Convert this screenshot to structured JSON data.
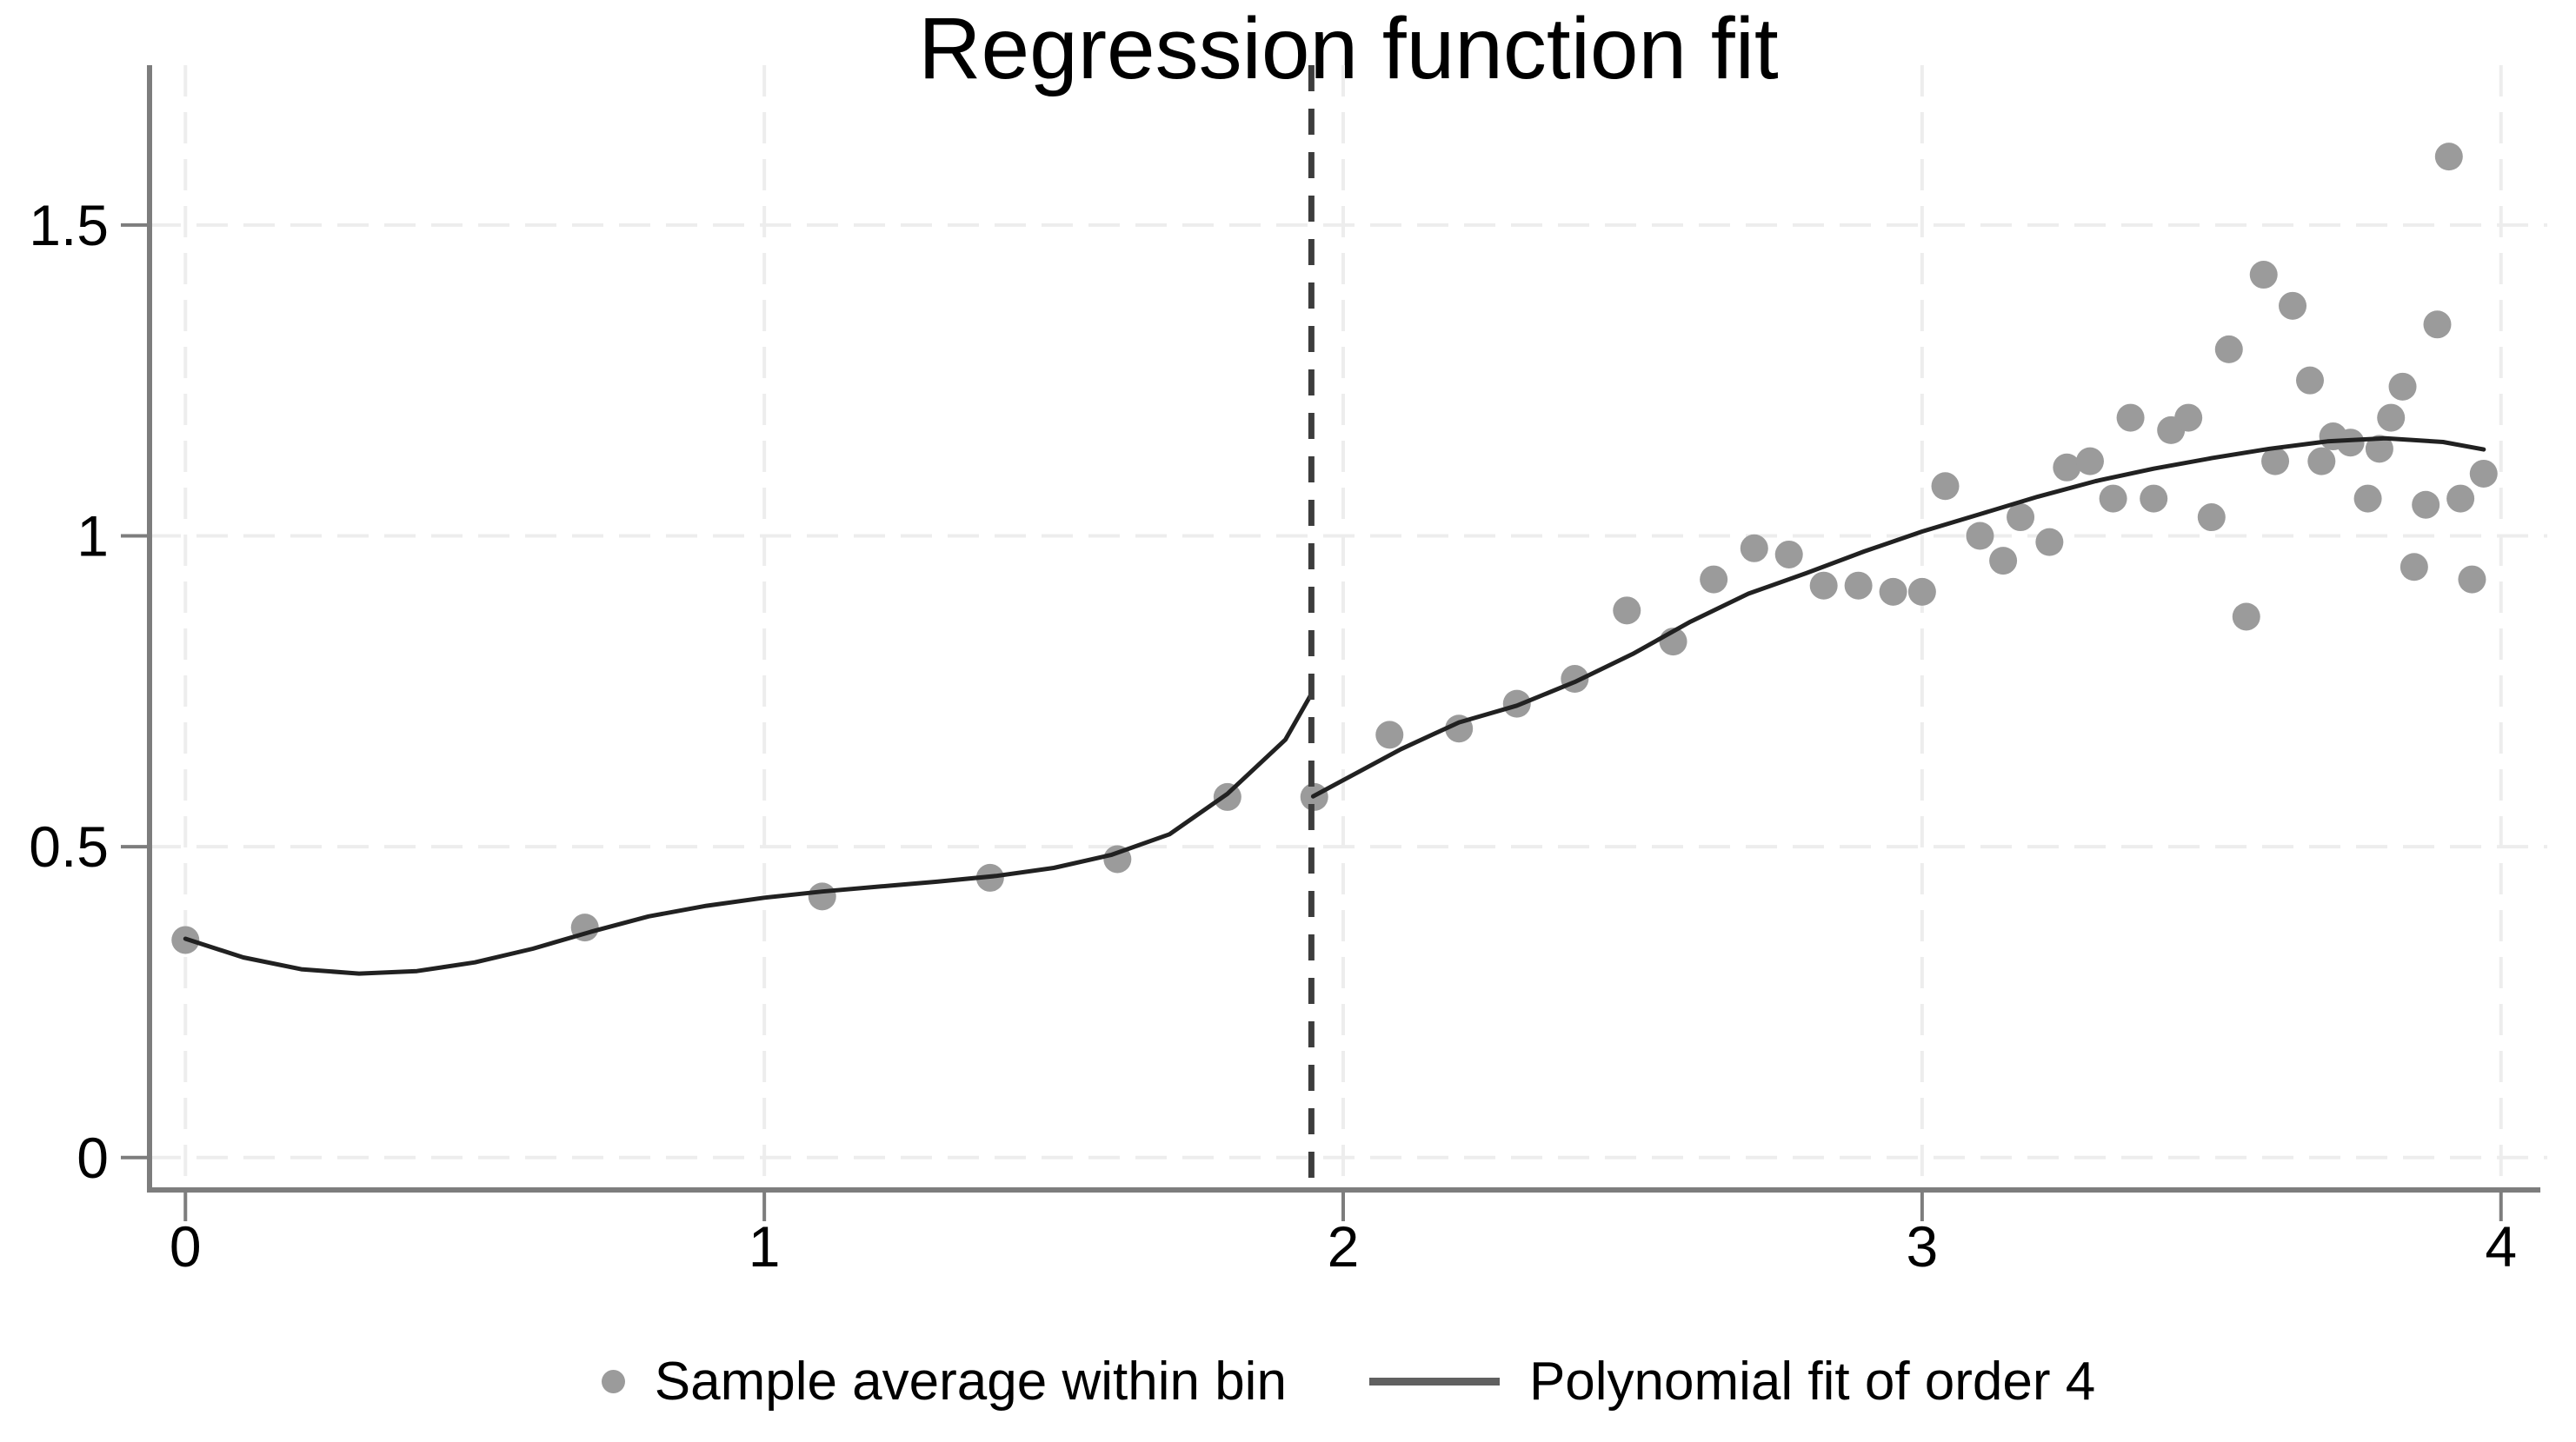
{
  "title": "Regression function fit",
  "legend": {
    "items": [
      {
        "label": "Sample average within bin",
        "marker": "dot-icon"
      },
      {
        "label": "Polynomial fit of order 4",
        "marker": "line-icon"
      }
    ],
    "position": "bottom center"
  },
  "style": {
    "background": "#ffffff",
    "dot_color": "#9b9b9b",
    "fit_line_color": "#212121",
    "legend_line_color": "#606060",
    "cutoff_color": "#3d3d3d",
    "axis_color": "#7d7d7d",
    "gridline_color": "#ededed",
    "text_color": "#000000"
  },
  "chart_data": {
    "type": "scatter",
    "title": "Regression function fit",
    "xlabel": "",
    "ylabel": "",
    "grid": "dashed light-gray gridlines at every x and y tick",
    "legend_position": "bottom center",
    "x_axis": {
      "ticks": [
        0,
        1,
        2,
        3,
        4
      ],
      "tick_labels": [
        "0",
        "1",
        "2",
        "3",
        "4"
      ],
      "range": [
        -0.062,
        4.08
      ]
    },
    "y_axis": {
      "ticks": [
        0,
        0.5,
        1,
        1.5
      ],
      "tick_labels": [
        "0",
        "0.5",
        "1",
        "1.5"
      ],
      "range": [
        -0.052,
        1.757
      ]
    },
    "cutoff_line": {
      "x": 1.945,
      "style": "dashed-vertical"
    },
    "series": [
      {
        "name": "Sample average within bin",
        "type": "scatter",
        "points": [
          [
            0.0,
            0.35
          ],
          [
            0.69,
            0.37
          ],
          [
            1.1,
            0.42
          ],
          [
            1.39,
            0.45
          ],
          [
            1.61,
            0.48
          ],
          [
            1.8,
            0.58
          ],
          [
            1.95,
            0.58
          ],
          [
            2.08,
            0.68
          ],
          [
            2.2,
            0.69
          ],
          [
            2.3,
            0.73
          ],
          [
            2.4,
            0.77
          ],
          [
            2.49,
            0.88
          ],
          [
            2.57,
            0.83
          ],
          [
            2.64,
            0.93
          ],
          [
            2.71,
            0.98
          ],
          [
            2.77,
            0.97
          ],
          [
            2.83,
            0.92
          ],
          [
            2.89,
            0.92
          ],
          [
            2.95,
            0.91
          ],
          [
            3.0,
            0.91
          ],
          [
            3.04,
            1.08
          ],
          [
            3.1,
            1.0
          ],
          [
            3.14,
            0.96
          ],
          [
            3.17,
            1.03
          ],
          [
            3.22,
            0.99
          ],
          [
            3.25,
            1.11
          ],
          [
            3.29,
            1.12
          ],
          [
            3.33,
            1.06
          ],
          [
            3.36,
            1.19
          ],
          [
            3.4,
            1.06
          ],
          [
            3.43,
            1.17
          ],
          [
            3.46,
            1.19
          ],
          [
            3.5,
            1.03
          ],
          [
            3.53,
            1.3
          ],
          [
            3.56,
            0.87
          ],
          [
            3.59,
            1.42
          ],
          [
            3.61,
            1.12
          ],
          [
            3.64,
            1.37
          ],
          [
            3.67,
            1.25
          ],
          [
            3.69,
            1.12
          ],
          [
            3.71,
            1.16
          ],
          [
            3.74,
            1.15
          ],
          [
            3.77,
            1.06
          ],
          [
            3.79,
            1.14
          ],
          [
            3.81,
            1.19
          ],
          [
            3.83,
            1.24
          ],
          [
            3.85,
            0.95
          ],
          [
            3.87,
            1.05
          ],
          [
            3.89,
            1.34
          ],
          [
            3.91,
            1.61
          ],
          [
            3.93,
            1.06
          ],
          [
            3.95,
            0.93
          ],
          [
            3.97,
            1.1
          ]
        ]
      },
      {
        "name": "Polynomial fit of order 4",
        "type": "line",
        "segments": [
          [
            [
              0.0,
              0.352
            ],
            [
              0.1,
              0.322
            ],
            [
              0.2,
              0.303
            ],
            [
              0.3,
              0.296
            ],
            [
              0.4,
              0.3
            ],
            [
              0.5,
              0.314
            ],
            [
              0.6,
              0.336
            ],
            [
              0.7,
              0.363
            ],
            [
              0.8,
              0.388
            ],
            [
              0.9,
              0.405
            ],
            [
              1.0,
              0.418
            ],
            [
              1.1,
              0.428
            ],
            [
              1.2,
              0.436
            ],
            [
              1.3,
              0.444
            ],
            [
              1.4,
              0.453
            ],
            [
              1.5,
              0.466
            ],
            [
              1.6,
              0.487
            ],
            [
              1.7,
              0.52
            ],
            [
              1.8,
              0.585
            ],
            [
              1.9,
              0.672
            ],
            [
              1.944,
              0.744
            ]
          ],
          [
            [
              1.948,
              0.581
            ],
            [
              2.0,
              0.607
            ],
            [
              2.1,
              0.657
            ],
            [
              2.2,
              0.7
            ],
            [
              2.3,
              0.727
            ],
            [
              2.4,
              0.765
            ],
            [
              2.5,
              0.81
            ],
            [
              2.6,
              0.862
            ],
            [
              2.7,
              0.907
            ],
            [
              2.8,
              0.94
            ],
            [
              2.9,
              0.975
            ],
            [
              3.0,
              1.007
            ],
            [
              3.1,
              1.035
            ],
            [
              3.2,
              1.063
            ],
            [
              3.3,
              1.088
            ],
            [
              3.4,
              1.108
            ],
            [
              3.5,
              1.125
            ],
            [
              3.6,
              1.14
            ],
            [
              3.7,
              1.152
            ],
            [
              3.8,
              1.157
            ],
            [
              3.9,
              1.151
            ],
            [
              3.97,
              1.139
            ]
          ]
        ]
      }
    ]
  }
}
